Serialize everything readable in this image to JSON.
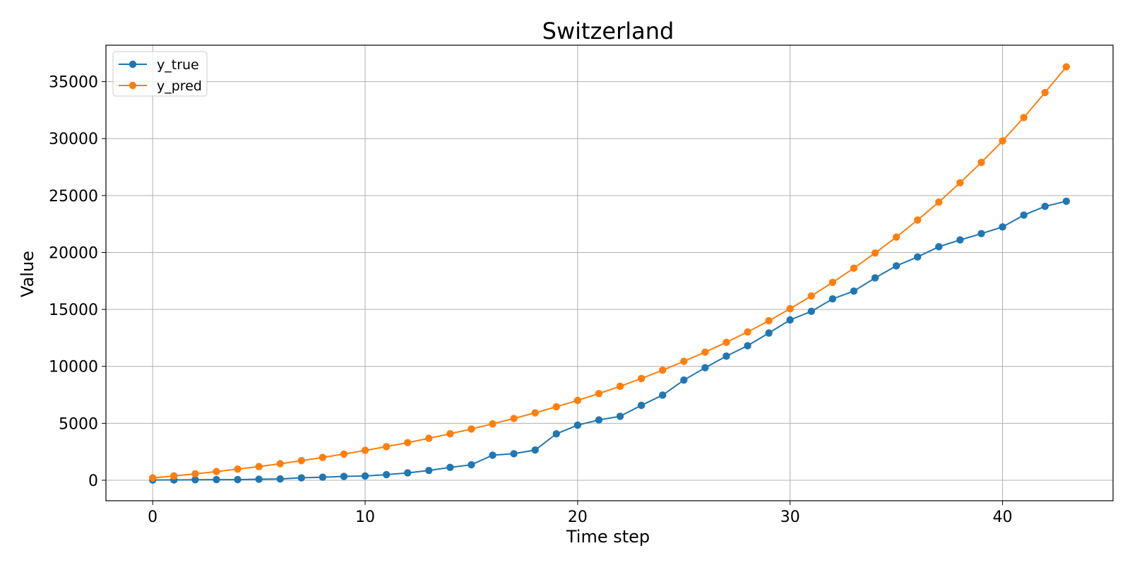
{
  "chart_data": {
    "type": "line",
    "title": "Switzerland",
    "xlabel": "Time step",
    "ylabel": "Value",
    "xlim": [
      -2.2,
      45.2
    ],
    "ylim": [
      -1800,
      38200
    ],
    "xticks": [
      0,
      10,
      20,
      30,
      40
    ],
    "yticks": [
      0,
      5000,
      10000,
      15000,
      20000,
      25000,
      30000,
      35000
    ],
    "grid": true,
    "legend_position": "top-left",
    "x": [
      0,
      1,
      2,
      3,
      4,
      5,
      6,
      7,
      8,
      9,
      10,
      11,
      12,
      13,
      14,
      15,
      16,
      17,
      18,
      19,
      20,
      21,
      22,
      23,
      24,
      25,
      26,
      27,
      28,
      29,
      30,
      31,
      32,
      33,
      34,
      35,
      36,
      37,
      38,
      39,
      40,
      41,
      42,
      43
    ],
    "series": [
      {
        "name": "y_true",
        "color": "#1f77b4",
        "values": [
          18,
          27,
          42,
          56,
          56,
          90,
          114,
          214,
          264,
          337,
          374,
          491,
          645,
          858,
          1125,
          1359,
          2200,
          2330,
          2650,
          4075,
          4840,
          5294,
          5615,
          6575,
          7474,
          8795,
          9877,
          10897,
          11811,
          12928,
          14076,
          14829,
          15922,
          16605,
          17768,
          18827,
          19606,
          20505,
          21100,
          21652,
          22242,
          23280,
          24051,
          24500
        ]
      },
      {
        "name": "y_pred",
        "color": "#ff7f0e",
        "values": [
          200,
          380,
          560,
          760,
          980,
          1200,
          1450,
          1720,
          2000,
          2300,
          2620,
          2950,
          3300,
          3680,
          4080,
          4500,
          4950,
          5420,
          5920,
          6450,
          7010,
          7610,
          8250,
          8930,
          9660,
          10440,
          11250,
          12110,
          13020,
          14000,
          15060,
          16180,
          17370,
          18620,
          19950,
          21350,
          22850,
          24420,
          26120,
          27910,
          29800,
          31850,
          34050,
          36300
        ]
      }
    ]
  }
}
